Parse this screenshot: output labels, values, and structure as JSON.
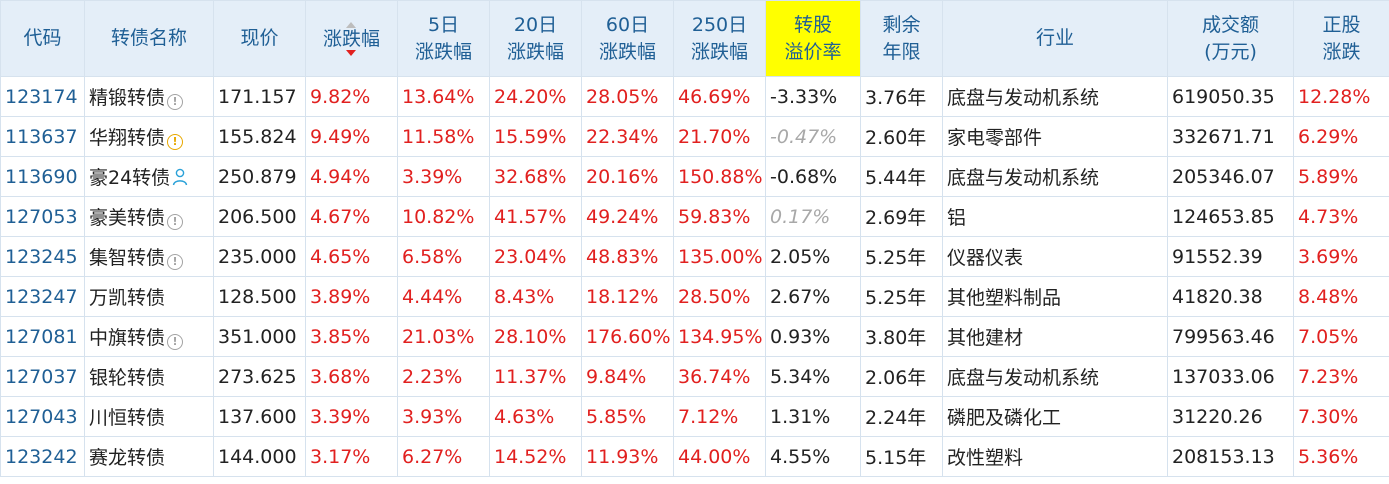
{
  "headers": {
    "code": "代码",
    "name": "转债名称",
    "price": "现价",
    "change": "涨跌幅",
    "d5": [
      "5日",
      "涨跌幅"
    ],
    "d20": [
      "20日",
      "涨跌幅"
    ],
    "d60": [
      "60日",
      "涨跌幅"
    ],
    "d250": [
      "250日",
      "涨跌幅"
    ],
    "premium": [
      "转股",
      "溢价率"
    ],
    "remain": [
      "剩余",
      "年限"
    ],
    "industry": "行业",
    "volume": [
      "成交额",
      "(万元)"
    ],
    "stock_change": [
      "正股",
      "涨跌"
    ]
  },
  "colors": {
    "header_bg": "#e4eef8",
    "header_text": "#1f5f95",
    "highlight": "#ffff00",
    "up_red": "#e1201f",
    "grid": "#d6e2ee"
  },
  "rows": [
    {
      "code": "123174",
      "name": "精锻转债",
      "icon": "info-icon",
      "price": "171.157",
      "change": "9.82%",
      "d5": "13.64%",
      "d20": "24.20%",
      "d60": "28.05%",
      "d250": "46.69%",
      "premium": "-3.33%",
      "premium_style": "normal",
      "remain": "3.76年",
      "industry": "底盘与发动机系统",
      "volume": "619050.35",
      "stock_change": "12.28%"
    },
    {
      "code": "113637",
      "name": "华翔转债",
      "icon": "warning-icon",
      "price": "155.824",
      "change": "9.49%",
      "d5": "11.58%",
      "d20": "15.59%",
      "d60": "22.34%",
      "d250": "21.70%",
      "premium": "-0.47%",
      "premium_style": "gray-italic",
      "remain": "2.60年",
      "industry": "家电零部件",
      "volume": "332671.71",
      "stock_change": "6.29%"
    },
    {
      "code": "113690",
      "name": "豪24转债",
      "icon": "user-icon",
      "price": "250.879",
      "change": "4.94%",
      "d5": "3.39%",
      "d20": "32.68%",
      "d60": "20.16%",
      "d250": "150.88%",
      "premium": "-0.68%",
      "premium_style": "normal",
      "remain": "5.44年",
      "industry": "底盘与发动机系统",
      "volume": "205346.07",
      "stock_change": "5.89%"
    },
    {
      "code": "127053",
      "name": "豪美转债",
      "icon": "info-icon",
      "price": "206.500",
      "change": "4.67%",
      "d5": "10.82%",
      "d20": "41.57%",
      "d60": "49.24%",
      "d250": "59.83%",
      "premium": "0.17%",
      "premium_style": "gray-italic",
      "remain": "2.69年",
      "industry": "铝",
      "volume": "124653.85",
      "stock_change": "4.73%"
    },
    {
      "code": "123245",
      "name": "集智转债",
      "icon": "info-icon",
      "price": "235.000",
      "change": "4.65%",
      "d5": "6.58%",
      "d20": "23.04%",
      "d60": "48.83%",
      "d250": "135.00%",
      "premium": "2.05%",
      "premium_style": "normal",
      "remain": "5.25年",
      "industry": "仪器仪表",
      "volume": "91552.39",
      "stock_change": "3.69%"
    },
    {
      "code": "123247",
      "name": "万凯转债",
      "icon": "",
      "price": "128.500",
      "change": "3.89%",
      "d5": "4.44%",
      "d20": "8.43%",
      "d60": "18.12%",
      "d250": "28.50%",
      "premium": "2.67%",
      "premium_style": "normal",
      "remain": "5.25年",
      "industry": "其他塑料制品",
      "volume": "41820.38",
      "stock_change": "8.48%"
    },
    {
      "code": "127081",
      "name": "中旗转债",
      "icon": "info-icon",
      "price": "351.000",
      "change": "3.85%",
      "d5": "21.03%",
      "d20": "28.10%",
      "d60": "176.60%",
      "d250": "134.95%",
      "premium": "0.93%",
      "premium_style": "normal",
      "remain": "3.80年",
      "industry": "其他建材",
      "volume": "799563.46",
      "stock_change": "7.05%"
    },
    {
      "code": "127037",
      "name": "银轮转债",
      "icon": "",
      "price": "273.625",
      "change": "3.68%",
      "d5": "2.23%",
      "d20": "11.37%",
      "d60": "9.84%",
      "d250": "36.74%",
      "premium": "5.34%",
      "premium_style": "normal",
      "remain": "2.06年",
      "industry": "底盘与发动机系统",
      "volume": "137033.06",
      "stock_change": "7.23%"
    },
    {
      "code": "127043",
      "name": "川恒转债",
      "icon": "",
      "price": "137.600",
      "change": "3.39%",
      "d5": "3.93%",
      "d20": "4.63%",
      "d60": "5.85%",
      "d250": "7.12%",
      "premium": "1.31%",
      "premium_style": "normal",
      "remain": "2.24年",
      "industry": "磷肥及磷化工",
      "volume": "31220.26",
      "stock_change": "7.30%"
    },
    {
      "code": "123242",
      "name": "赛龙转债",
      "icon": "",
      "price": "144.000",
      "change": "3.17%",
      "d5": "6.27%",
      "d20": "14.52%",
      "d60": "11.93%",
      "d250": "44.00%",
      "premium": "4.55%",
      "premium_style": "normal",
      "remain": "5.15年",
      "industry": "改性塑料",
      "volume": "208153.13",
      "stock_change": "5.36%"
    }
  ]
}
